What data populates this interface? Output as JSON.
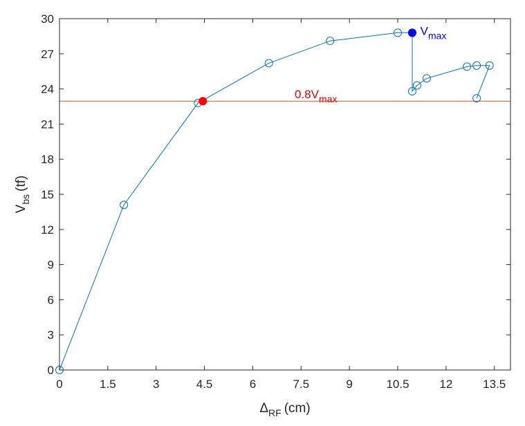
{
  "chart_data": {
    "type": "line",
    "xlabel": {
      "symbol": "Δ",
      "subscript": "RF",
      "unit": "(cm)"
    },
    "ylabel": {
      "symbol": "V",
      "subscript": "bs",
      "unit": "(tf)"
    },
    "xlim": [
      0,
      14
    ],
    "ylim": [
      0,
      30
    ],
    "xticks": [
      0,
      1.5,
      3,
      4.5,
      6,
      7.5,
      9,
      10.5,
      12,
      13.5
    ],
    "xtick_labels": [
      "0",
      "1.5",
      "3",
      "4.5",
      "6",
      "7.5",
      "9",
      "10.5",
      "12",
      "13.5"
    ],
    "yticks": [
      0,
      3,
      6,
      9,
      12,
      15,
      18,
      21,
      24,
      27,
      30
    ],
    "ytick_labels": [
      "0",
      "3",
      "6",
      "9",
      "12",
      "15",
      "18",
      "21",
      "24",
      "27",
      "30"
    ],
    "grid": false,
    "series": [
      {
        "x": [
          0,
          2.0,
          4.3,
          6.5,
          8.4,
          10.5,
          10.95,
          10.95,
          11.1,
          11.4,
          12.65,
          12.95,
          13.35,
          12.95
        ],
        "y": [
          0,
          14.1,
          22.8,
          26.2,
          28.1,
          28.8,
          28.8,
          23.8,
          24.3,
          24.9,
          25.9,
          26.0,
          26.0,
          23.2
        ],
        "color": "#0072BD",
        "marker": "open-circle"
      }
    ],
    "reference_line": {
      "y": 22.96,
      "color": "#D95319"
    },
    "highlight_points": [
      {
        "x": 4.45,
        "y": 22.96,
        "color": "#FF0000"
      },
      {
        "x": 10.95,
        "y": 28.8,
        "color": "#0000FF"
      }
    ],
    "annotations": [
      {
        "main": "V",
        "sub": "max",
        "x": 11.2,
        "y": 28.6,
        "color": "#0000FF"
      },
      {
        "main": "0.8V",
        "sub": "max",
        "x": 7.3,
        "y": 23.2,
        "color": "#E60000"
      }
    ]
  }
}
